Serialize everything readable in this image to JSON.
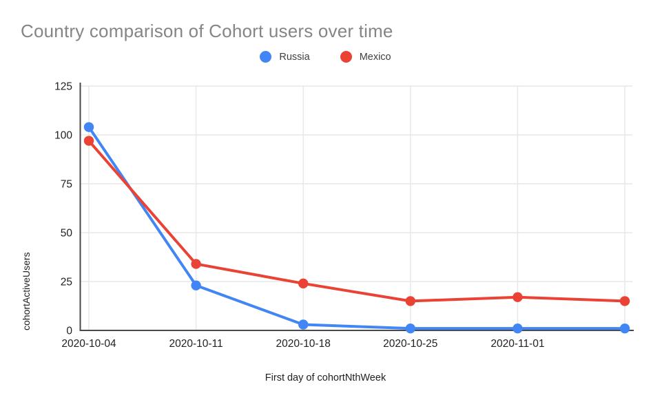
{
  "chart_data": {
    "type": "line",
    "title": "Country comparison of Cohort users over time",
    "xlabel": "First day of cohortNthWeek",
    "ylabel": "cohortActiveUsers",
    "categories": [
      "2020-10-04",
      "2020-10-11",
      "2020-10-18",
      "2020-10-25",
      "2020-11-01",
      ""
    ],
    "x_tick_labels": [
      "2020-10-04",
      "2020-10-11",
      "2020-10-18",
      "2020-10-25",
      "2020-11-01"
    ],
    "y_ticks": [
      0,
      25,
      50,
      75,
      100,
      125
    ],
    "ylim": [
      0,
      125
    ],
    "grid": true,
    "legend_position": "top-center",
    "series": [
      {
        "name": "Russia",
        "color": "#4285F4",
        "values": [
          104,
          23,
          3,
          1,
          1,
          1
        ]
      },
      {
        "name": "Mexico",
        "color": "#EA4335",
        "values": [
          97,
          34,
          24,
          15,
          17,
          15
        ]
      }
    ]
  },
  "colors": {
    "title_text": "#858585",
    "axis_text": "#202124",
    "gridline": "#e7e7e7",
    "axis_line": "#484848",
    "background": "#ffffff"
  }
}
